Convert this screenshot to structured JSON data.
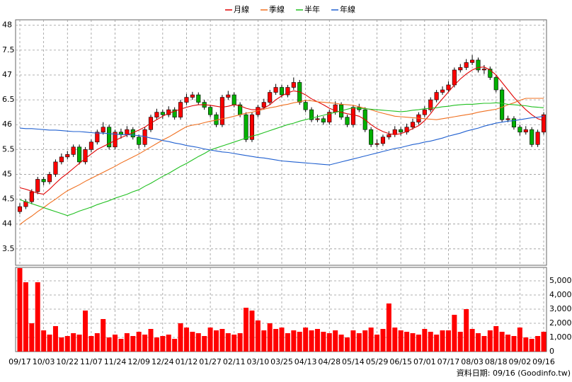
{
  "chart_data": {
    "type": "candlestick",
    "categories": [
      "09/17",
      null,
      null,
      null,
      "10/03",
      null,
      null,
      null,
      "10/22",
      null,
      null,
      null,
      "11/07",
      null,
      null,
      null,
      "11/24",
      null,
      null,
      null,
      "12/09",
      null,
      null,
      null,
      "12/24",
      null,
      null,
      null,
      "01/12",
      null,
      null,
      null,
      "01/27",
      null,
      null,
      null,
      "02/11",
      null,
      null,
      null,
      "03/10",
      null,
      null,
      null,
      "03/25",
      null,
      null,
      null,
      "04/13",
      null,
      null,
      null,
      "04/28",
      null,
      null,
      null,
      "05/14",
      null,
      null,
      null,
      "05/29",
      null,
      null,
      null,
      "06/15",
      null,
      null,
      null,
      "07/01",
      null,
      null,
      null,
      "07/17",
      null,
      null,
      null,
      "08/03",
      null,
      null,
      null,
      "08/18",
      null,
      null,
      null,
      "09/02",
      null,
      null,
      null,
      "09/16"
    ],
    "open": [
      44.25,
      44.35,
      44.45,
      44.65,
      44.9,
      44.85,
      45.0,
      45.25,
      45.35,
      45.4,
      45.55,
      45.25,
      45.5,
      45.65,
      45.85,
      45.95,
      45.55,
      45.85,
      45.8,
      45.9,
      45.75,
      45.6,
      45.9,
      46.15,
      46.25,
      46.2,
      46.3,
      46.15,
      46.45,
      46.55,
      46.6,
      46.45,
      46.35,
      46.2,
      46.0,
      46.55,
      46.6,
      46.4,
      46.2,
      45.7,
      46.2,
      46.35,
      46.45,
      46.65,
      46.75,
      46.6,
      46.75,
      46.85,
      46.45,
      46.3,
      46.1,
      46.12,
      46.05,
      46.25,
      46.4,
      46.15,
      46.0,
      46.35,
      46.3,
      45.9,
      45.6,
      45.62,
      45.75,
      45.8,
      45.9,
      45.85,
      45.95,
      46.05,
      46.2,
      46.3,
      46.5,
      46.65,
      46.7,
      46.8,
      47.1,
      47.15,
      47.25,
      47.3,
      47.1,
      47.12,
      46.95,
      46.7,
      46.1,
      46.12,
      45.95,
      45.85,
      45.9,
      45.6,
      45.85
    ],
    "high": [
      44.42,
      44.5,
      44.7,
      44.95,
      44.95,
      45.05,
      45.3,
      45.42,
      45.47,
      45.6,
      45.6,
      45.55,
      45.7,
      45.9,
      46.05,
      46.0,
      45.9,
      45.92,
      45.97,
      45.95,
      45.8,
      45.95,
      46.2,
      46.32,
      46.3,
      46.37,
      46.35,
      46.5,
      46.62,
      46.66,
      46.65,
      46.5,
      46.4,
      46.25,
      46.6,
      46.68,
      46.65,
      46.45,
      46.25,
      46.25,
      46.4,
      46.52,
      46.7,
      46.82,
      46.8,
      46.8,
      46.95,
      46.9,
      46.5,
      46.35,
      46.2,
      46.17,
      46.3,
      46.47,
      46.45,
      46.2,
      46.4,
      46.42,
      46.35,
      45.95,
      45.7,
      45.8,
      45.87,
      45.97,
      45.95,
      46.02,
      46.12,
      46.25,
      46.37,
      46.55,
      46.7,
      46.77,
      46.87,
      47.15,
      47.22,
      47.32,
      47.4,
      47.35,
      47.2,
      47.17,
      47.0,
      46.75,
      46.18,
      46.17,
      46.0,
      45.97,
      45.95,
      45.9,
      46.25
    ],
    "low": [
      44.2,
      44.3,
      44.4,
      44.6,
      44.78,
      44.8,
      44.95,
      45.2,
      45.3,
      45.35,
      45.2,
      45.2,
      45.45,
      45.6,
      45.8,
      45.5,
      45.5,
      45.72,
      45.75,
      45.7,
      45.52,
      45.55,
      45.85,
      46.1,
      46.12,
      46.15,
      46.1,
      46.1,
      46.4,
      46.5,
      46.4,
      46.3,
      46.15,
      45.95,
      45.95,
      46.5,
      46.35,
      46.15,
      45.65,
      45.65,
      46.15,
      46.3,
      46.4,
      46.6,
      46.55,
      46.55,
      46.7,
      46.4,
      46.25,
      46.05,
      46.05,
      46.0,
      46.0,
      46.2,
      46.1,
      45.95,
      45.95,
      46.25,
      45.85,
      45.55,
      45.55,
      45.57,
      45.7,
      45.75,
      45.78,
      45.8,
      45.9,
      46.0,
      46.15,
      46.25,
      46.45,
      46.6,
      46.65,
      46.75,
      47.05,
      47.1,
      47.2,
      47.05,
      47.02,
      46.9,
      46.65,
      46.05,
      46.05,
      45.9,
      45.78,
      45.8,
      45.55,
      45.55,
      45.8
    ],
    "close": [
      44.35,
      44.45,
      44.65,
      44.9,
      44.85,
      45.0,
      45.25,
      45.35,
      45.4,
      45.55,
      45.25,
      45.5,
      45.65,
      45.85,
      45.95,
      45.55,
      45.85,
      45.8,
      45.9,
      45.75,
      45.6,
      45.9,
      46.15,
      46.25,
      46.2,
      46.3,
      46.15,
      46.45,
      46.55,
      46.6,
      46.45,
      46.35,
      46.2,
      46.0,
      46.55,
      46.6,
      46.4,
      46.2,
      45.7,
      46.2,
      46.35,
      46.45,
      46.65,
      46.75,
      46.6,
      46.75,
      46.85,
      46.45,
      46.3,
      46.1,
      46.12,
      46.05,
      46.25,
      46.4,
      46.15,
      46.0,
      46.35,
      46.3,
      45.9,
      45.6,
      45.62,
      45.75,
      45.8,
      45.9,
      45.85,
      45.95,
      46.05,
      46.2,
      46.3,
      46.5,
      46.65,
      46.7,
      46.8,
      47.1,
      47.15,
      47.25,
      47.3,
      47.1,
      47.12,
      46.95,
      46.7,
      46.1,
      46.12,
      45.95,
      45.85,
      45.9,
      45.6,
      45.85,
      46.2
    ],
    "volume": [
      5900,
      4900,
      2000,
      4900,
      1500,
      1200,
      1800,
      1000,
      1100,
      1300,
      1200,
      2900,
      1100,
      1300,
      2300,
      1000,
      1200,
      900,
      1300,
      1100,
      1400,
      1200,
      1600,
      1000,
      1100,
      1200,
      900,
      2000,
      1700,
      1400,
      1300,
      1100,
      1700,
      1500,
      1600,
      1300,
      1200,
      1300,
      3100,
      2900,
      2200,
      1500,
      2000,
      1600,
      1700,
      1300,
      1500,
      1400,
      1700,
      1500,
      1600,
      1400,
      1300,
      1500,
      1200,
      1000,
      1500,
      1300,
      1500,
      1700,
      1200,
      1600,
      3400,
      1700,
      1500,
      1400,
      1300,
      1200,
      1600,
      1400,
      1200,
      1500,
      1500,
      2600,
      1400,
      3000,
      1600,
      1300,
      1100,
      1500,
      1800,
      1400,
      1200,
      1100,
      1700,
      1000,
      900,
      1100,
      1400
    ],
    "series": [
      {
        "name": "月線",
        "color": "#e00000",
        "values": [
          44.73,
          44.7,
          44.66,
          44.62,
          44.6,
          44.7,
          44.82,
          44.93,
          45.02,
          45.12,
          45.22,
          45.32,
          45.41,
          45.5,
          45.56,
          45.62,
          45.68,
          45.74,
          45.79,
          45.84,
          45.89,
          45.95,
          46.03,
          46.1,
          46.17,
          46.23,
          46.27,
          46.31,
          46.35,
          46.38,
          46.4,
          46.4,
          46.39,
          46.37,
          46.35,
          46.37,
          46.4,
          46.38,
          46.33,
          46.3,
          46.3,
          46.33,
          46.4,
          46.5,
          46.58,
          46.64,
          46.68,
          46.66,
          46.6,
          46.52,
          46.46,
          46.4,
          46.33,
          46.28,
          46.25,
          46.22,
          46.2,
          46.17,
          46.1,
          46.0,
          45.92,
          45.86,
          45.82,
          45.8,
          45.82,
          45.86,
          45.92,
          45.98,
          46.08,
          46.22,
          46.38,
          46.52,
          46.66,
          46.8,
          46.92,
          47.02,
          47.1,
          47.15,
          47.16,
          47.1,
          47.0,
          46.85,
          46.7,
          46.55,
          46.42,
          46.3,
          46.2,
          46.12,
          46.08
        ]
      },
      {
        "name": "季線",
        "color": "#f07020",
        "values": [
          43.99,
          44.08,
          44.16,
          44.25,
          44.33,
          44.42,
          44.5,
          44.59,
          44.67,
          44.73,
          44.79,
          44.86,
          44.92,
          44.98,
          45.04,
          45.1,
          45.16,
          45.23,
          45.29,
          45.35,
          45.41,
          45.48,
          45.55,
          45.62,
          45.69,
          45.75,
          45.82,
          45.89,
          45.96,
          45.99,
          46.01,
          46.04,
          46.07,
          46.09,
          46.12,
          46.14,
          46.17,
          46.2,
          46.23,
          46.25,
          46.28,
          46.31,
          46.34,
          46.36,
          46.39,
          46.41,
          46.44,
          46.46,
          46.49,
          46.48,
          46.46,
          46.45,
          46.44,
          46.43,
          46.41,
          46.4,
          46.39,
          46.36,
          46.33,
          46.3,
          46.26,
          46.23,
          46.2,
          46.17,
          46.16,
          46.15,
          46.14,
          46.13,
          46.12,
          46.11,
          46.1,
          46.12,
          46.14,
          46.16,
          46.18,
          46.2,
          46.22,
          46.25,
          46.27,
          46.29,
          46.31,
          46.35,
          46.4,
          46.44,
          46.49,
          46.53,
          46.53,
          46.53,
          46.53
        ]
      },
      {
        "name": "半年",
        "color": "#20c020",
        "values": [
          44.49,
          44.45,
          44.41,
          44.37,
          44.33,
          44.29,
          44.25,
          44.21,
          44.17,
          44.21,
          44.26,
          44.3,
          44.34,
          44.39,
          44.43,
          44.47,
          44.52,
          44.56,
          44.6,
          44.65,
          44.69,
          44.76,
          44.82,
          44.89,
          44.96,
          45.02,
          45.09,
          45.16,
          45.22,
          45.29,
          45.36,
          45.42,
          45.49,
          45.53,
          45.57,
          45.61,
          45.65,
          45.69,
          45.73,
          45.77,
          45.8,
          45.84,
          45.88,
          45.92,
          45.96,
          46.0,
          46.03,
          46.07,
          46.1,
          46.13,
          46.16,
          46.19,
          46.22,
          46.25,
          46.28,
          46.31,
          46.34,
          46.33,
          46.32,
          46.31,
          46.3,
          46.29,
          46.28,
          46.27,
          46.26,
          46.27,
          46.29,
          46.3,
          46.32,
          46.33,
          46.34,
          46.36,
          46.37,
          46.39,
          46.4,
          46.41,
          46.41,
          46.42,
          46.43,
          46.43,
          46.44,
          46.43,
          46.41,
          46.4,
          46.39,
          46.38,
          46.36,
          46.35,
          46.34
        ]
      },
      {
        "name": "年線",
        "color": "#2060d0",
        "values": [
          45.93,
          45.92,
          45.92,
          45.91,
          45.9,
          45.89,
          45.89,
          45.88,
          45.87,
          45.86,
          45.86,
          45.85,
          45.84,
          45.83,
          45.83,
          45.82,
          45.81,
          45.8,
          45.8,
          45.79,
          45.78,
          45.76,
          45.73,
          45.71,
          45.68,
          45.66,
          45.63,
          45.61,
          45.58,
          45.56,
          45.54,
          45.51,
          45.49,
          45.47,
          45.45,
          45.44,
          45.42,
          45.4,
          45.38,
          45.36,
          45.34,
          45.33,
          45.31,
          45.29,
          45.27,
          45.26,
          45.25,
          45.24,
          45.23,
          45.22,
          45.21,
          45.2,
          45.19,
          45.22,
          45.25,
          45.28,
          45.31,
          45.34,
          45.37,
          45.4,
          45.43,
          45.46,
          45.49,
          45.52,
          45.54,
          45.57,
          45.6,
          45.62,
          45.65,
          45.67,
          45.7,
          45.73,
          45.77,
          45.8,
          45.83,
          45.87,
          45.9,
          45.93,
          45.97,
          46.0,
          46.03,
          46.05,
          46.07,
          46.08,
          46.1,
          46.12,
          46.14,
          46.15,
          46.17
        ]
      }
    ],
    "up_color": "#ff0000",
    "down_color": "#00b000",
    "volume_color": "#ff0000",
    "ylim": [
      43.17,
      48.11
    ],
    "yticks": [
      48,
      {
        "value": 47.5,
        "label": "7.5"
      },
      47,
      {
        "value": 46.5,
        "label": "6.5"
      },
      46,
      {
        "value": 45.5,
        "label": "5.5"
      },
      45,
      {
        "value": 44.5,
        "label": "4.5"
      },
      44,
      {
        "value": 43.5,
        "label": "3.5"
      }
    ],
    "y2lim": [
      0,
      5950
    ],
    "y2ticks": [
      0,
      {
        "value": 1000,
        "label": "1,000"
      },
      {
        "value": 2000,
        "label": "2,000"
      },
      {
        "value": 3000,
        "label": "3,000"
      },
      {
        "value": 4000,
        "label": "4,000"
      },
      {
        "value": 5000,
        "label": "5,000"
      }
    ],
    "grid": true,
    "footer": "資料日期: 09/16 (Goodinfo.tw)"
  }
}
